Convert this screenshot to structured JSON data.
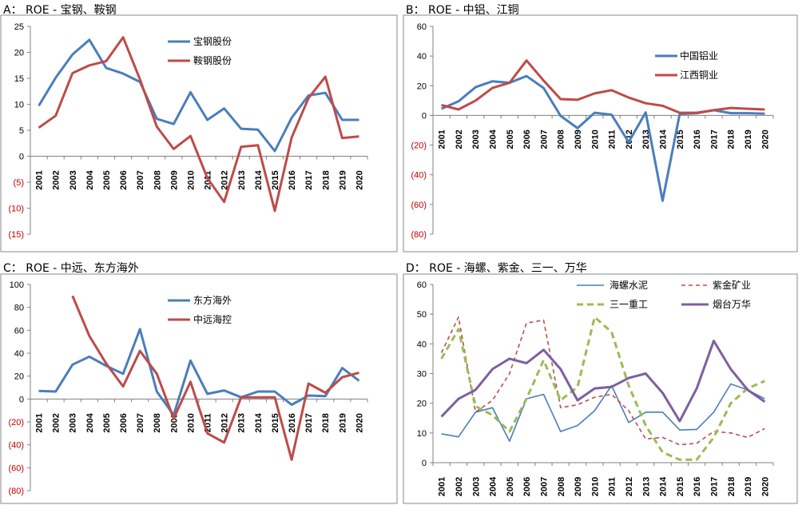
{
  "years": [
    "2001",
    "2002",
    "2003",
    "2004",
    "2005",
    "2006",
    "2007",
    "2008",
    "2009",
    "2010",
    "2011",
    "2012",
    "2013",
    "2014",
    "2015",
    "2016",
    "2017",
    "2018",
    "2019",
    "2020"
  ],
  "chart_data": [
    {
      "id": "A",
      "type": "line",
      "title": "A： ROE - 宝钢、鞍钢",
      "ylim": [
        -15,
        25
      ],
      "yticks": [
        25,
        20,
        15,
        10,
        5,
        0,
        -5,
        -10,
        -15
      ],
      "ytick_labels": [
        "25",
        "20",
        "15",
        "10",
        "5",
        "0",
        "(5)",
        "(10)",
        "(15)"
      ],
      "series": [
        {
          "name": "宝钢股份",
          "color": "#4a7ebb",
          "style": "solid",
          "values": [
            9.7,
            15.1,
            19.6,
            22.4,
            17.0,
            15.9,
            14.3,
            7.2,
            6.2,
            12.3,
            7.0,
            9.2,
            5.3,
            5.1,
            1.0,
            7.4,
            11.7,
            12.2,
            7.0,
            7.0
          ]
        },
        {
          "name": "鞍钢股份",
          "color": "#be4b48",
          "style": "solid",
          "values": [
            5.5,
            7.8,
            16.0,
            17.5,
            18.3,
            22.9,
            14.8,
            5.7,
            1.4,
            3.9,
            -4.2,
            -8.8,
            1.8,
            2.1,
            -10.5,
            3.6,
            11.2,
            15.3,
            3.5,
            3.8
          ]
        }
      ]
    },
    {
      "id": "B",
      "type": "line",
      "title": "B： ROE - 中铝、江铜",
      "ylim": [
        -80,
        60
      ],
      "yticks": [
        60,
        40,
        20,
        0,
        -20,
        -40,
        -60,
        -80
      ],
      "ytick_labels": [
        "60",
        "40",
        "20",
        "0",
        "(20)",
        "(40)",
        "(60)",
        "(80)"
      ],
      "series": [
        {
          "name": "中国铝业",
          "color": "#4a7ebb",
          "style": "solid",
          "values": [
            4.5,
            9.5,
            19.0,
            23.0,
            22.0,
            26.5,
            18.5,
            -0.3,
            -8.6,
            1.8,
            0.5,
            -18.0,
            2.0,
            -57.5,
            1.0,
            1.5,
            3.5,
            1.5,
            1.5,
            1.2
          ]
        },
        {
          "name": "江西铜业",
          "color": "#be4b48",
          "style": "solid",
          "values": [
            7.0,
            4.0,
            10.0,
            18.5,
            22.0,
            37.0,
            23.5,
            11.0,
            10.5,
            14.8,
            17.0,
            12.0,
            8.2,
            6.5,
            1.8,
            1.8,
            3.5,
            5.0,
            4.5,
            4.0
          ]
        }
      ]
    },
    {
      "id": "C",
      "type": "line",
      "title": "C： ROE - 中远、东方海外",
      "ylim": [
        -80,
        100
      ],
      "yticks": [
        100,
        80,
        60,
        40,
        20,
        0,
        -20,
        -40,
        -60,
        -80
      ],
      "ytick_labels": [
        "100",
        "80",
        "60",
        "40",
        "20",
        "0",
        "(20)",
        "(40)",
        "(60)",
        "(80)"
      ],
      "series": [
        {
          "name": "东方海外",
          "color": "#4a7ebb",
          "style": "solid",
          "values": [
            7.0,
            6.5,
            30.0,
            37.0,
            29.0,
            22.0,
            61.0,
            6.5,
            -14.0,
            33.5,
            4.5,
            7.5,
            1.5,
            6.5,
            6.5,
            -5.0,
            3.0,
            2.5,
            27.0,
            16.0
          ]
        },
        {
          "name": "中远海控",
          "color": "#be4b48",
          "style": "solid",
          "values": [
            null,
            null,
            90.0,
            55.0,
            31.0,
            11.0,
            42.0,
            22.0,
            -17.0,
            15.0,
            -30.0,
            -38.0,
            1.5,
            1.5,
            1.5,
            -53.0,
            13.5,
            5.5,
            19.0,
            23.0
          ]
        }
      ]
    },
    {
      "id": "D",
      "type": "line",
      "title": "D： ROE - 海螺、紫金、三一、万华",
      "ylim": [
        0,
        60
      ],
      "yticks": [
        60,
        50,
        40,
        30,
        20,
        10,
        0
      ],
      "ytick_labels": [
        "60",
        "50",
        "40",
        "30",
        "20",
        "10",
        "0"
      ],
      "series": [
        {
          "name": "海螺水泥",
          "color": "#4a7ebb",
          "style": "solid-thin",
          "values": [
            9.7,
            8.7,
            17.0,
            18.5,
            7.2,
            21.5,
            23.0,
            10.5,
            12.5,
            17.5,
            26.0,
            13.5,
            17.0,
            17.0,
            11.0,
            11.2,
            17.0,
            26.5,
            24.5,
            21.5
          ]
        },
        {
          "name": "紫金矿业",
          "color": "#be4b48",
          "style": "dashed",
          "values": [
            37.0,
            49.0,
            17.0,
            21.0,
            30.0,
            47.0,
            48.0,
            18.5,
            19.5,
            22.0,
            23.0,
            17.5,
            8.0,
            8.5,
            6.0,
            6.5,
            10.5,
            10.0,
            8.5,
            11.5
          ]
        },
        {
          "name": "三一重工",
          "color": "#9bbb59",
          "style": "dashed-thick",
          "values": [
            35.0,
            45.0,
            19.0,
            16.0,
            10.5,
            21.5,
            34.5,
            21.0,
            25.5,
            49.0,
            44.0,
            26.0,
            12.5,
            3.5,
            1.0,
            1.0,
            8.5,
            20.0,
            25.0,
            27.5
          ]
        },
        {
          "name": "烟台万华",
          "color": "#7d60a0",
          "style": "solid-thick",
          "values": [
            15.5,
            21.5,
            24.5,
            31.5,
            35.0,
            33.5,
            38.0,
            31.5,
            21.0,
            25.0,
            25.5,
            28.5,
            30.0,
            23.5,
            14.0,
            25.0,
            41.0,
            31.5,
            24.5,
            20.5
          ]
        }
      ]
    }
  ]
}
